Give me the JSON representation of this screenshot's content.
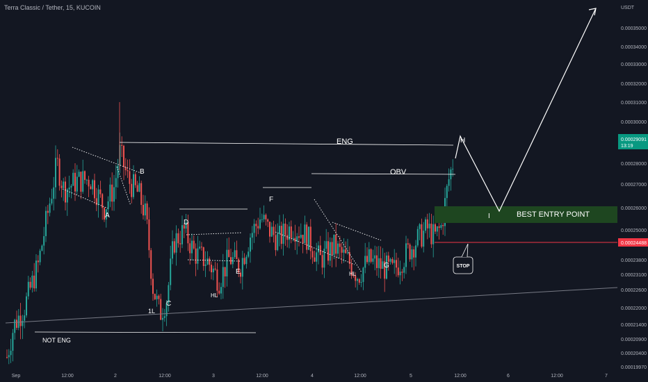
{
  "header": {
    "title": "Terra Classic / Tether, 15, KUCOIN"
  },
  "colors": {
    "background": "#131722",
    "up": "#26a69a",
    "down": "#ef5350",
    "annotation": "#ffffff",
    "entry_zone": "#1e4620",
    "stop_line": "#f23645",
    "axis_text": "#b2b5be",
    "price_tag": "#089981"
  },
  "chart_data": {
    "type": "candlestick",
    "title": "Terra Classic / Tether, 15, KUCOIN",
    "y_axis": {
      "unit": "USDT",
      "ticks": [
        "0.00035000",
        "0.00034000",
        "0.00033000",
        "0.00032000",
        "0.00031000",
        "0.00030000",
        "0.00028000",
        "0.00027000",
        "0.00026000",
        "0.00025000",
        "0.00023800",
        "0.00023100",
        "0.00022600",
        "0.00022000",
        "0.00021400",
        "0.00020900",
        "0.00020400",
        "0.00019970"
      ],
      "current_price": "0.00029091",
      "current_countdown": "13:19",
      "stop_price": "0.00024488"
    },
    "x_axis": {
      "ticks": [
        "Sep",
        "12:00",
        "2",
        "12:00",
        "3",
        "12:00",
        "4",
        "12:00",
        "5",
        "12:00",
        "6",
        "12:00",
        "7"
      ]
    },
    "price_path": [
      [
        "Sep",
        0.00021
      ],
      [
        "12:00",
        0.000285
      ],
      [
        "2",
        0.000295
      ],
      [
        "12:00",
        0.000225
      ],
      [
        "3",
        0.00024
      ],
      [
        "12:00",
        0.000265
      ],
      [
        "4",
        0.00027
      ],
      [
        "12:00",
        0.000235
      ],
      [
        "5",
        0.000242
      ],
      [
        "12:00",
        0.0002905
      ]
    ],
    "annotations": {
      "labels": [
        "A",
        "B",
        "C",
        "1L",
        "D",
        "HL",
        "E",
        "F",
        "HL",
        "G",
        "H",
        "I"
      ],
      "lines": [
        "ENG",
        "OBV",
        "NOT ENG"
      ],
      "zone_label": "BEST ENTRY POINT",
      "stop_label": "STOP"
    }
  }
}
